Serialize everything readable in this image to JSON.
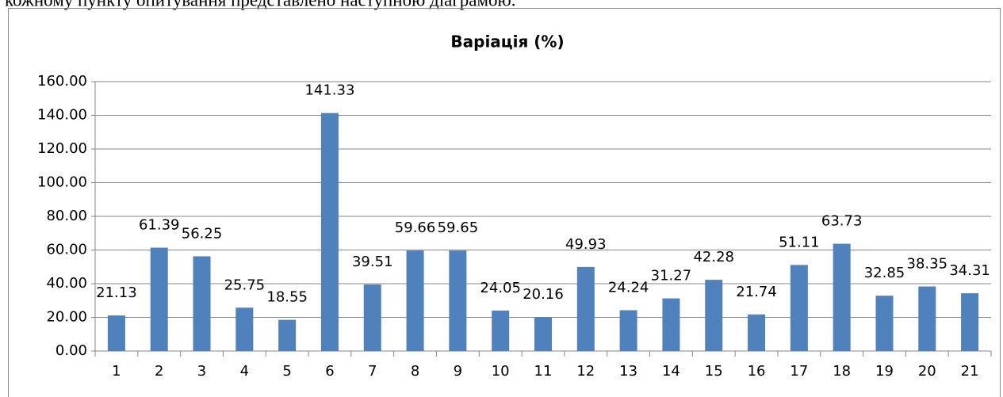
{
  "document_text": "кожному пункту опитування представлено наступною діаграмою.",
  "chart_data": {
    "type": "bar",
    "title": "Варіація (%)",
    "categories": [
      "1",
      "2",
      "3",
      "4",
      "5",
      "6",
      "7",
      "8",
      "9",
      "10",
      "11",
      "12",
      "13",
      "14",
      "15",
      "16",
      "17",
      "18",
      "19",
      "20",
      "21"
    ],
    "values": [
      21.13,
      61.39,
      56.25,
      25.75,
      18.55,
      141.33,
      39.51,
      59.66,
      59.65,
      24.05,
      20.16,
      49.93,
      24.24,
      31.27,
      42.28,
      21.74,
      51.11,
      63.73,
      32.85,
      38.35,
      34.31
    ],
    "color": "#4f81bd",
    "ylim": [
      0,
      160
    ],
    "yticks": [
      {
        "value": 0,
        "label": "0.00"
      },
      {
        "value": 20,
        "label": "20.00"
      },
      {
        "value": 40,
        "label": "40.00"
      },
      {
        "value": 60,
        "label": "60.00"
      },
      {
        "value": 80,
        "label": "80.00"
      },
      {
        "value": 100,
        "label": "100.00"
      },
      {
        "value": 120,
        "label": "120.00"
      },
      {
        "value": 140,
        "label": "140.00"
      },
      {
        "value": 160,
        "label": "160.00"
      }
    ],
    "grid": true,
    "data_labels": true
  }
}
